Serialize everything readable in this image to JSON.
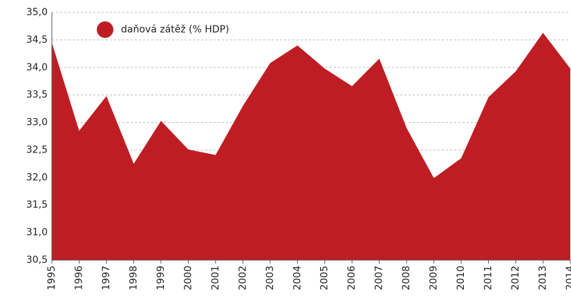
{
  "chart_data": {
    "type": "area",
    "categories": [
      "1995",
      "1996",
      "1997",
      "1998",
      "1999",
      "2000",
      "2001",
      "2002",
      "2003",
      "2004",
      "2005",
      "2006",
      "2007",
      "2008",
      "2009",
      "2010",
      "2011",
      "2012",
      "2013",
      "2014"
    ],
    "series": [
      {
        "name": "daňová zátěž (% HDP)",
        "color": "#be1e23",
        "values": [
          34.45,
          32.85,
          33.48,
          32.25,
          33.03,
          32.51,
          32.41,
          33.3,
          34.08,
          34.4,
          33.98,
          33.66,
          34.16,
          32.9,
          31.99,
          32.35,
          33.46,
          33.93,
          34.63,
          33.98
        ]
      }
    ],
    "ylim": [
      30.5,
      35.0
    ],
    "yticks": [
      {
        "value": 30.5,
        "label": "30,5"
      },
      {
        "value": 31.0,
        "label": "31,0"
      },
      {
        "value": 31.5,
        "label": "31,5"
      },
      {
        "value": 32.0,
        "label": "32,0"
      },
      {
        "value": 32.5,
        "label": "32,5"
      },
      {
        "value": 33.0,
        "label": "33,0"
      },
      {
        "value": 33.5,
        "label": "33,5"
      },
      {
        "value": 34.0,
        "label": "34,0"
      },
      {
        "value": 34.5,
        "label": "34,5"
      },
      {
        "value": 35.0,
        "label": "35,0"
      }
    ],
    "grid": true
  }
}
